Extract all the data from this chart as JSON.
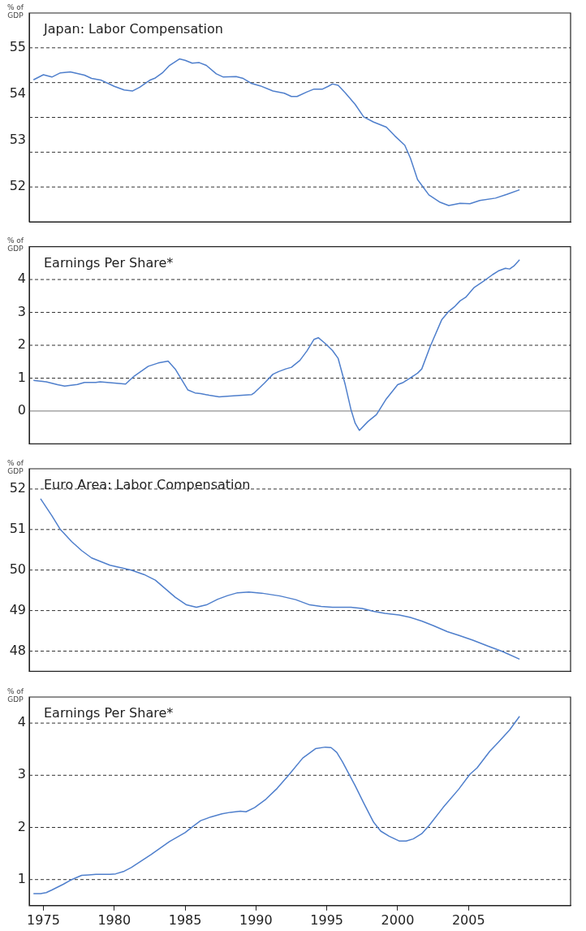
{
  "chart_data": [
    {
      "type": "line",
      "title": "Japan: Labor Compensation",
      "ylabel": "% of GDP",
      "color": "#4f7fcc",
      "xlim": [
        1974,
        2012.2
      ],
      "xticks": [
        1975,
        1980,
        1985,
        1990,
        1995,
        2000,
        2005
      ],
      "ylim": [
        51.25,
        55.75
      ],
      "yticks": [
        52,
        53,
        54,
        55
      ],
      "tick_labels": "y",
      "grid": false,
      "legend": false,
      "marker": "none",
      "line_style": "solid",
      "ref_lines": [
        {
          "axis": "y",
          "value": 52,
          "color": "#333333",
          "line_style": "dashed"
        },
        {
          "axis": "y",
          "value": 52.75,
          "color": "#333333",
          "line_style": "dashed"
        },
        {
          "axis": "y",
          "value": 53.5,
          "color": "#333333",
          "line_style": "dashed"
        },
        {
          "axis": "y",
          "value": 54.25,
          "color": "#333333",
          "line_style": "dashed"
        },
        {
          "axis": "y",
          "value": 55,
          "color": "#333333",
          "line_style": "dashed"
        }
      ],
      "x": [
        1974.3,
        1975.0,
        1975.6,
        1976.2,
        1976.9,
        1977.9,
        1978.4,
        1979.1,
        1980.0,
        1980.7,
        1981.3,
        1981.8,
        1982.5,
        1982.9,
        1983.4,
        1983.9,
        1984.6,
        1985.0,
        1985.5,
        1986.0,
        1986.5,
        1987.2,
        1987.7,
        1988.6,
        1989.1,
        1989.7,
        1990.3,
        1991.2,
        1992.0,
        1992.5,
        1992.9,
        1993.6,
        1994.1,
        1994.7,
        1995.1,
        1995.4,
        1995.8,
        1996.3,
        1997.0,
        1997.6,
        1998.3,
        1999.2,
        1999.8,
        2000.5,
        2000.9,
        2001.4,
        2002.2,
        2003.0,
        2003.6,
        2004.4,
        2005.1,
        2005.8,
        2006.9,
        2007.7,
        2008.6
      ],
      "values": [
        54.31,
        54.42,
        54.37,
        54.46,
        54.48,
        54.41,
        54.34,
        54.3,
        54.17,
        54.09,
        54.07,
        54.15,
        54.3,
        54.35,
        54.46,
        54.62,
        54.76,
        54.73,
        54.67,
        54.68,
        54.62,
        54.44,
        54.37,
        54.38,
        54.34,
        54.23,
        54.18,
        54.07,
        54.02,
        53.95,
        53.95,
        54.05,
        54.11,
        54.11,
        54.17,
        54.22,
        54.19,
        54.03,
        53.78,
        53.51,
        53.4,
        53.29,
        53.1,
        52.9,
        52.62,
        52.16,
        51.83,
        51.67,
        51.6,
        51.65,
        51.64,
        51.71,
        51.76,
        51.84,
        51.94
      ]
    },
    {
      "type": "line",
      "title": "Earnings Per Share*",
      "ylabel": "% of GDP",
      "color": "#4f7fcc",
      "xlim": [
        1974,
        2012.2
      ],
      "xticks": [
        1975,
        1980,
        1985,
        1990,
        1995,
        2000,
        2005
      ],
      "ylim": [
        -1,
        5
      ],
      "yticks": [
        0,
        1,
        2,
        3,
        4
      ],
      "tick_labels": "y",
      "grid": false,
      "legend": false,
      "marker": "none",
      "line_style": "solid",
      "ref_lines": [
        {
          "axis": "y",
          "value": 0,
          "color": "#777777",
          "line_style": "solid"
        },
        {
          "axis": "y",
          "value": 1,
          "color": "#333333",
          "line_style": "dashed"
        },
        {
          "axis": "y",
          "value": 2,
          "color": "#333333",
          "line_style": "dashed"
        },
        {
          "axis": "y",
          "value": 3,
          "color": "#333333",
          "line_style": "dashed"
        },
        {
          "axis": "y",
          "value": 4,
          "color": "#333333",
          "line_style": "dashed"
        }
      ],
      "x": [
        1974.3,
        1975.2,
        1976.0,
        1976.5,
        1977.4,
        1977.9,
        1978.7,
        1979.0,
        1980.0,
        1980.8,
        1981.4,
        1982.4,
        1983.1,
        1983.8,
        1984.3,
        1985.2,
        1985.7,
        1986.1,
        1986.7,
        1987.4,
        1988.4,
        1989.7,
        1989.9,
        1990.6,
        1991.2,
        1991.6,
        1992.1,
        1992.5,
        1993.1,
        1993.6,
        1994.1,
        1994.4,
        1994.9,
        1995.4,
        1995.8,
        1996.3,
        1996.7,
        1997.0,
        1997.3,
        1997.9,
        1998.5,
        1999.2,
        2000.0,
        2000.4,
        2000.9,
        2001.4,
        2001.7,
        2002.3,
        2003.1,
        2003.6,
        2004.0,
        2004.4,
        2004.8,
        2005.4,
        2006.1,
        2006.7,
        2007.1,
        2007.6,
        2007.9,
        2008.2,
        2008.6
      ],
      "values": [
        0.93,
        0.89,
        0.8,
        0.76,
        0.81,
        0.87,
        0.87,
        0.89,
        0.85,
        0.82,
        1.06,
        1.36,
        1.46,
        1.52,
        1.28,
        0.64,
        0.55,
        0.53,
        0.48,
        0.43,
        0.46,
        0.5,
        0.56,
        0.85,
        1.12,
        1.2,
        1.28,
        1.33,
        1.54,
        1.83,
        2.18,
        2.23,
        2.05,
        1.84,
        1.6,
        0.8,
        0.05,
        -0.37,
        -0.59,
        -0.32,
        -0.11,
        0.37,
        0.8,
        0.87,
        1.01,
        1.15,
        1.28,
        1.97,
        2.77,
        3.03,
        3.17,
        3.35,
        3.46,
        3.76,
        3.96,
        4.15,
        4.26,
        4.34,
        4.32,
        4.41,
        4.6
      ]
    },
    {
      "type": "line",
      "title": "Euro Area: Labor Compensation",
      "ylabel": "% of GDP",
      "color": "#4f7fcc",
      "xlim": [
        1974,
        2012.2
      ],
      "xticks": [
        1975,
        1980,
        1985,
        1990,
        1995,
        2000,
        2005
      ],
      "ylim": [
        47.5,
        52.5
      ],
      "yticks": [
        48,
        49,
        50,
        51,
        52
      ],
      "tick_labels": "y",
      "grid": false,
      "legend": false,
      "marker": "none",
      "line_style": "solid",
      "ref_lines": [
        {
          "axis": "y",
          "value": 48,
          "color": "#333333",
          "line_style": "dashed"
        },
        {
          "axis": "y",
          "value": 49,
          "color": "#333333",
          "line_style": "dashed"
        },
        {
          "axis": "y",
          "value": 50,
          "color": "#333333",
          "line_style": "dashed"
        },
        {
          "axis": "y",
          "value": 51,
          "color": "#333333",
          "line_style": "dashed"
        },
        {
          "axis": "y",
          "value": 52,
          "color": "#333333",
          "line_style": "dashed"
        }
      ],
      "x": [
        1974.8,
        1975.6,
        1976.2,
        1977.0,
        1977.7,
        1978.4,
        1979.7,
        1981.2,
        1982.1,
        1982.9,
        1984.3,
        1985.1,
        1985.8,
        1986.5,
        1987.3,
        1988.0,
        1988.7,
        1989.5,
        1990.4,
        1991.7,
        1992.8,
        1993.8,
        1994.6,
        1995.4,
        1996.7,
        1997.5,
        1998.3,
        1999.1,
        2000.1,
        2000.9,
        2001.7,
        2002.5,
        2003.5,
        2004.3,
        2005.3,
        2006.4,
        2007.4,
        2008.6
      ],
      "values": [
        51.76,
        51.34,
        51.0,
        50.7,
        50.48,
        50.3,
        50.12,
        50.0,
        49.89,
        49.75,
        49.33,
        49.14,
        49.08,
        49.14,
        49.28,
        49.37,
        49.44,
        49.46,
        49.43,
        49.36,
        49.27,
        49.14,
        49.1,
        49.08,
        49.08,
        49.05,
        48.98,
        48.93,
        48.89,
        48.83,
        48.74,
        48.63,
        48.48,
        48.39,
        48.27,
        48.12,
        47.99,
        47.8
      ]
    },
    {
      "type": "line",
      "title": "Earnings Per Share*",
      "ylabel": "% of GDP",
      "color": "#4f7fcc",
      "xlim": [
        1974,
        2012.2
      ],
      "xticks": [
        1975,
        1980,
        1985,
        1990,
        1995,
        2000,
        2005
      ],
      "ylim": [
        0.5,
        4.5
      ],
      "yticks": [
        1,
        2,
        3,
        4
      ],
      "grid": false,
      "legend": false,
      "marker": "none",
      "line_style": "solid",
      "ref_lines": [
        {
          "axis": "y",
          "value": 1,
          "color": "#333333",
          "line_style": "dashed"
        },
        {
          "axis": "y",
          "value": 2,
          "color": "#333333",
          "line_style": "dashed"
        },
        {
          "axis": "y",
          "value": 3,
          "color": "#333333",
          "line_style": "dashed"
        },
        {
          "axis": "y",
          "value": 4,
          "color": "#333333",
          "line_style": "dashed"
        }
      ],
      "x": [
        1974.3,
        1974.8,
        1975.2,
        1975.6,
        1976.4,
        1977.0,
        1977.7,
        1978.2,
        1978.7,
        1979.7,
        1980.1,
        1980.7,
        1981.2,
        1982.6,
        1983.9,
        1985.0,
        1985.6,
        1986.1,
        1986.8,
        1987.6,
        1988.2,
        1988.9,
        1989.3,
        1989.9,
        1990.7,
        1991.5,
        1992.3,
        1993.3,
        1994.2,
        1994.9,
        1995.3,
        1995.7,
        1996.1,
        1997.0,
        1997.6,
        1998.3,
        1998.8,
        1999.4,
        2000.1,
        2000.6,
        2001.1,
        2001.7,
        2002.2,
        2003.2,
        2004.3,
        2005.1,
        2005.6,
        2006.5,
        2007.1,
        2007.9,
        2008.6
      ],
      "values": [
        0.73,
        0.73,
        0.75,
        0.8,
        0.91,
        1.0,
        1.08,
        1.09,
        1.1,
        1.1,
        1.11,
        1.16,
        1.23,
        1.48,
        1.73,
        1.9,
        2.03,
        2.13,
        2.2,
        2.26,
        2.29,
        2.31,
        2.3,
        2.38,
        2.54,
        2.75,
        3.0,
        3.33,
        3.51,
        3.54,
        3.53,
        3.44,
        3.26,
        2.8,
        2.47,
        2.1,
        1.93,
        1.83,
        1.74,
        1.74,
        1.78,
        1.88,
        2.03,
        2.38,
        2.73,
        3.02,
        3.14,
        3.46,
        3.63,
        3.87,
        4.13
      ]
    }
  ]
}
